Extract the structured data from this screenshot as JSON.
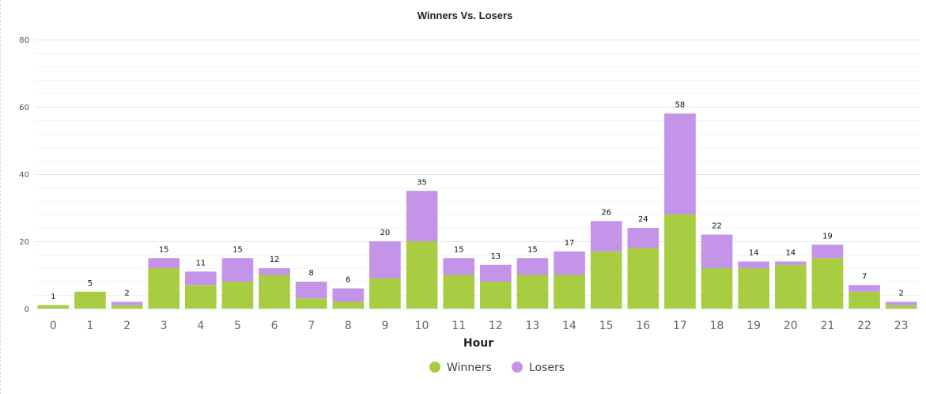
{
  "chart_data": {
    "type": "bar",
    "stacked": true,
    "title": "Winners Vs. Losers",
    "xlabel": "Hour",
    "ylabel": "",
    "ylim": [
      0,
      80
    ],
    "yticks": [
      0,
      20,
      40,
      60,
      80
    ],
    "grid": true,
    "legend_position": "bottom",
    "categories": [
      "0",
      "1",
      "2",
      "3",
      "4",
      "5",
      "6",
      "7",
      "8",
      "9",
      "10",
      "11",
      "12",
      "13",
      "14",
      "15",
      "16",
      "17",
      "18",
      "19",
      "20",
      "21",
      "22",
      "23"
    ],
    "series": [
      {
        "name": "Winners",
        "color": "#a8cd43",
        "values": [
          1,
          5,
          1,
          12,
          7,
          8,
          10,
          3,
          2,
          9,
          20,
          10,
          8,
          10,
          10,
          17,
          18,
          28,
          12,
          12,
          13,
          15,
          5,
          1
        ]
      },
      {
        "name": "Losers",
        "color": "#c394e8",
        "values": [
          0,
          0,
          1,
          3,
          4,
          7,
          2,
          5,
          4,
          11,
          15,
          5,
          5,
          5,
          7,
          9,
          6,
          30,
          10,
          2,
          1,
          4,
          2,
          1
        ]
      }
    ],
    "totals": [
      1,
      5,
      2,
      15,
      11,
      15,
      12,
      8,
      6,
      20,
      35,
      15,
      13,
      15,
      17,
      26,
      24,
      58,
      22,
      14,
      14,
      19,
      7,
      2
    ]
  }
}
